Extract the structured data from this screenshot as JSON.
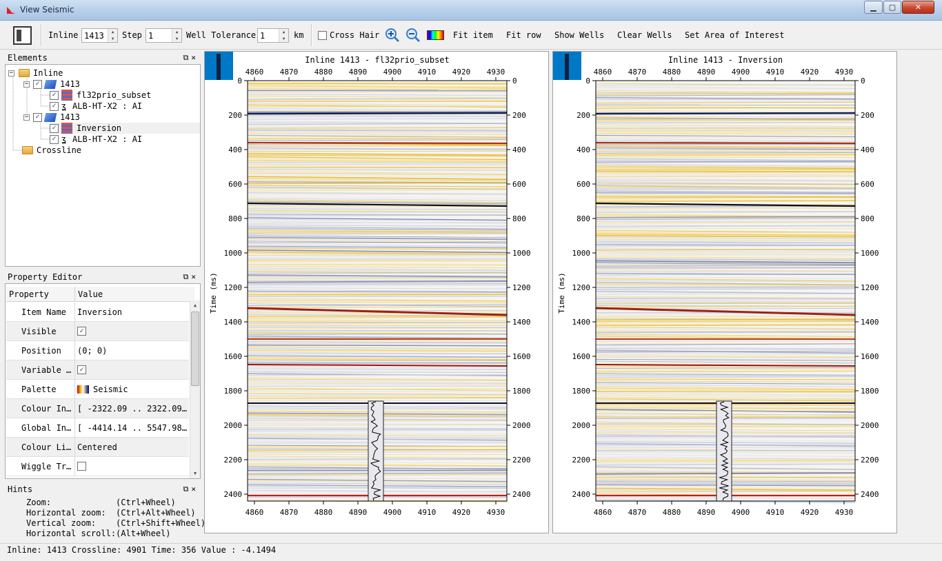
{
  "window": {
    "title": "View Seismic",
    "min": "▁",
    "max": "▢",
    "close": "✕",
    "app_icon": "seismic-app-icon"
  },
  "toolbar": {
    "inline_label": "Inline",
    "inline_value": "1413",
    "step_label": "Step",
    "step_value": "1",
    "well_tol_label": "Well Tolerance",
    "well_tol_value": "1",
    "km_label": "km",
    "crosshair_label": "Cross Hair",
    "fit_item": "Fit item",
    "fit_row": "Fit row",
    "show_wells": "Show Wells",
    "clear_wells": "Clear Wells",
    "set_aoi": "Set Area of Interest"
  },
  "elements": {
    "title": "Elements",
    "nodes": [
      "Inline",
      "1413",
      "fl32prio_subset",
      "ALB-HT-X2 : AI",
      "1413",
      "Inversion",
      "ALB-HT-X2 : AI",
      "Crossline"
    ]
  },
  "property_editor": {
    "title": "Property Editor",
    "col_property": "Property",
    "col_value": "Value",
    "rows": [
      {
        "k": "Item Name",
        "v": "Inversion"
      },
      {
        "k": "Visible",
        "v": "✓"
      },
      {
        "k": "Position",
        "v": "(0; 0)"
      },
      {
        "k": "Variable …",
        "v": "✓"
      },
      {
        "k": "Palette",
        "v": "Seismic"
      },
      {
        "k": "Colour In…",
        "v": "[ -2322.09 .. 2322.09…"
      },
      {
        "k": "Global In…",
        "v": "[ -4414.14 .. 5547.98…"
      },
      {
        "k": "Colour Li…",
        "v": "Centered"
      },
      {
        "k": "Wiggle Tr…",
        "v": ""
      }
    ]
  },
  "hints": {
    "title": "Hints",
    "lines": [
      "Zoom:             (Ctrl+Wheel)",
      "Horizontal zoom:  (Ctrl+Alt+Wheel)",
      "Vertical zoom:    (Ctrl+Shift+Wheel)",
      "Horizontal scroll:(Alt+Wheel)"
    ]
  },
  "status": {
    "text": "Inline: 1413 Crossline: 4901 Time: 356 Value : -4.1494"
  },
  "plots": [
    {
      "title": "Inline 1413 - fl32prio_subset",
      "ylabel": "Time (ms)"
    },
    {
      "title": "Inline 1413 - Inversion",
      "ylabel": "Time (ms)"
    }
  ],
  "axes": {
    "x_ticks": [
      "4860",
      "4870",
      "4880",
      "4890",
      "4900",
      "4910",
      "4920",
      "4930"
    ],
    "y_ticks": [
      "0",
      "200",
      "400",
      "600",
      "800",
      "1000",
      "1200",
      "1400",
      "1600",
      "1800",
      "2000",
      "2200",
      "2400"
    ]
  },
  "colors": {
    "accent": "#0078c8",
    "positive": "#e0a000",
    "negative": "#203080"
  }
}
